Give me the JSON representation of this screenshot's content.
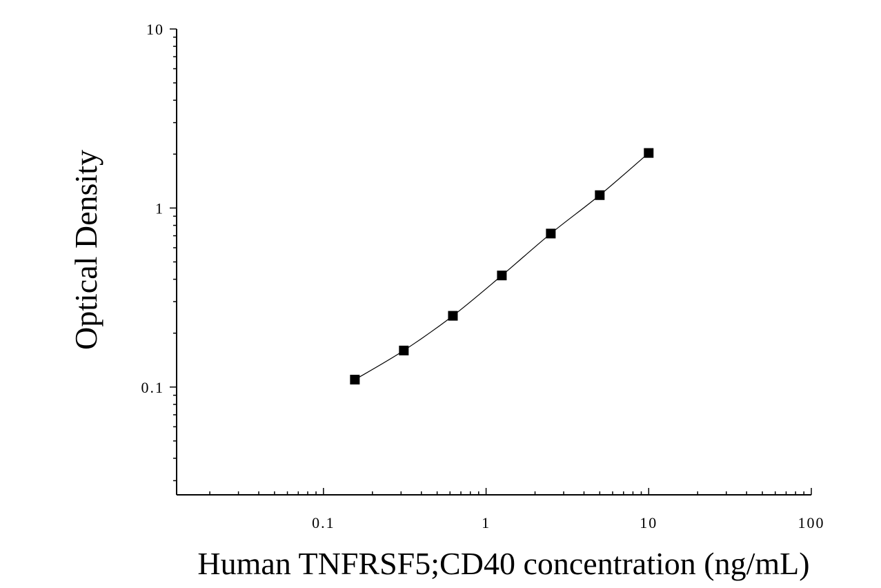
{
  "chart_data": {
    "type": "scatter",
    "title": "",
    "xlabel": "Human TNFRSF5;CD40 concentration (ng/mL)",
    "ylabel": "Optical Density",
    "x_scale": "log",
    "y_scale": "log",
    "xlim": [
      0.0125,
      100
    ],
    "ylim": [
      0.025,
      10
    ],
    "x_ticks": [
      {
        "value": 0.1,
        "label": "0.1"
      },
      {
        "value": 1,
        "label": "1"
      },
      {
        "value": 10,
        "label": "10"
      },
      {
        "value": 100,
        "label": "100"
      }
    ],
    "y_ticks": [
      {
        "value": 0.1,
        "label": "0.1"
      },
      {
        "value": 1,
        "label": "1"
      },
      {
        "value": 10,
        "label": "10"
      }
    ],
    "grid": false,
    "legend": "none",
    "marker": "square",
    "series": [
      {
        "x": [
          0.156,
          0.312,
          0.625,
          1.25,
          2.5,
          5,
          10
        ],
        "y": [
          0.11,
          0.16,
          0.25,
          0.42,
          0.72,
          1.18,
          2.03
        ],
        "fit_line": true
      }
    ]
  },
  "colors": {
    "marker": "#000000",
    "line": "#000000",
    "axis": "#000000",
    "background": "#ffffff"
  }
}
